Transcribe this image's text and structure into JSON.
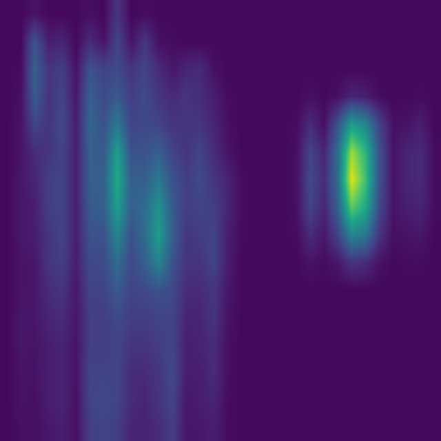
{
  "chart_data": {
    "type": "heatmap",
    "zlim": [
      0,
      1
    ],
    "tick_labels": false,
    "cells": [
      [
        0.02,
        0.02,
        0.05,
        0.02,
        0.02,
        0.02,
        0.04,
        0.02,
        0.15,
        0.02,
        0.03,
        0.02,
        0.02,
        0.02,
        0.02,
        0.02,
        0.02,
        0.02,
        0.02,
        0.02,
        0.02,
        0.02,
        0.02,
        0.02,
        0.02,
        0.02,
        0.02,
        0.02,
        0.02,
        0.02,
        0.02,
        0.02
      ],
      [
        0.02,
        0.02,
        0.25,
        0.08,
        0.1,
        0.02,
        0.12,
        0.05,
        0.2,
        0.05,
        0.15,
        0.04,
        0.03,
        0.02,
        0.02,
        0.02,
        0.02,
        0.02,
        0.02,
        0.02,
        0.02,
        0.02,
        0.02,
        0.02,
        0.02,
        0.02,
        0.02,
        0.02,
        0.02,
        0.02,
        0.02,
        0.02
      ],
      [
        0.02,
        0.03,
        0.3,
        0.15,
        0.18,
        0.05,
        0.25,
        0.2,
        0.22,
        0.15,
        0.2,
        0.12,
        0.06,
        0.1,
        0.12,
        0.04,
        0.02,
        0.02,
        0.02,
        0.02,
        0.02,
        0.02,
        0.02,
        0.02,
        0.02,
        0.02,
        0.02,
        0.02,
        0.02,
        0.02,
        0.02,
        0.02
      ],
      [
        0.02,
        0.04,
        0.28,
        0.15,
        0.2,
        0.06,
        0.3,
        0.22,
        0.28,
        0.18,
        0.22,
        0.15,
        0.12,
        0.15,
        0.12,
        0.08,
        0.03,
        0.02,
        0.02,
        0.02,
        0.02,
        0.02,
        0.04,
        0.02,
        0.04,
        0.1,
        0.08,
        0.03,
        0.02,
        0.02,
        0.03,
        0.02
      ],
      [
        0.02,
        0.05,
        0.2,
        0.15,
        0.22,
        0.08,
        0.32,
        0.25,
        0.4,
        0.2,
        0.22,
        0.2,
        0.15,
        0.15,
        0.15,
        0.1,
        0.04,
        0.02,
        0.02,
        0.02,
        0.02,
        0.03,
        0.12,
        0.04,
        0.25,
        0.55,
        0.45,
        0.2,
        0.04,
        0.05,
        0.08,
        0.02
      ],
      [
        0.02,
        0.05,
        0.12,
        0.15,
        0.2,
        0.08,
        0.3,
        0.28,
        0.55,
        0.25,
        0.25,
        0.3,
        0.2,
        0.15,
        0.2,
        0.12,
        0.05,
        0.02,
        0.02,
        0.02,
        0.02,
        0.04,
        0.2,
        0.1,
        0.35,
        0.85,
        0.65,
        0.25,
        0.05,
        0.1,
        0.12,
        0.03
      ],
      [
        0.02,
        0.06,
        0.1,
        0.18,
        0.2,
        0.08,
        0.3,
        0.3,
        0.6,
        0.3,
        0.3,
        0.4,
        0.25,
        0.18,
        0.22,
        0.15,
        0.1,
        0.03,
        0.02,
        0.02,
        0.02,
        0.04,
        0.22,
        0.12,
        0.35,
        0.95,
        0.7,
        0.25,
        0.05,
        0.1,
        0.12,
        0.03
      ],
      [
        0.02,
        0.06,
        0.08,
        0.18,
        0.2,
        0.08,
        0.28,
        0.3,
        0.55,
        0.3,
        0.35,
        0.5,
        0.28,
        0.18,
        0.2,
        0.18,
        0.1,
        0.03,
        0.02,
        0.02,
        0.02,
        0.04,
        0.2,
        0.1,
        0.3,
        0.75,
        0.6,
        0.22,
        0.05,
        0.08,
        0.1,
        0.03
      ],
      [
        0.02,
        0.06,
        0.08,
        0.15,
        0.2,
        0.08,
        0.25,
        0.25,
        0.45,
        0.25,
        0.35,
        0.55,
        0.3,
        0.15,
        0.18,
        0.2,
        0.08,
        0.03,
        0.02,
        0.02,
        0.02,
        0.03,
        0.12,
        0.06,
        0.2,
        0.45,
        0.4,
        0.15,
        0.04,
        0.05,
        0.06,
        0.02
      ],
      [
        0.02,
        0.05,
        0.06,
        0.15,
        0.18,
        0.08,
        0.22,
        0.22,
        0.35,
        0.22,
        0.3,
        0.45,
        0.25,
        0.15,
        0.15,
        0.2,
        0.08,
        0.02,
        0.02,
        0.02,
        0.02,
        0.02,
        0.05,
        0.03,
        0.06,
        0.15,
        0.12,
        0.05,
        0.02,
        0.03,
        0.03,
        0.02
      ],
      [
        0.02,
        0.05,
        0.06,
        0.12,
        0.15,
        0.06,
        0.2,
        0.2,
        0.28,
        0.2,
        0.22,
        0.25,
        0.22,
        0.12,
        0.12,
        0.15,
        0.06,
        0.02,
        0.02,
        0.02,
        0.02,
        0.02,
        0.02,
        0.02,
        0.02,
        0.02,
        0.02,
        0.02,
        0.02,
        0.02,
        0.02,
        0.02
      ],
      [
        0.02,
        0.06,
        0.06,
        0.1,
        0.12,
        0.06,
        0.18,
        0.18,
        0.22,
        0.18,
        0.18,
        0.2,
        0.2,
        0.1,
        0.1,
        0.15,
        0.05,
        0.02,
        0.02,
        0.02,
        0.02,
        0.02,
        0.02,
        0.02,
        0.02,
        0.02,
        0.02,
        0.02,
        0.02,
        0.02,
        0.02,
        0.02
      ],
      [
        0.02,
        0.06,
        0.05,
        0.08,
        0.1,
        0.05,
        0.18,
        0.18,
        0.2,
        0.15,
        0.15,
        0.18,
        0.2,
        0.08,
        0.1,
        0.12,
        0.04,
        0.02,
        0.02,
        0.02,
        0.02,
        0.02,
        0.02,
        0.02,
        0.02,
        0.02,
        0.02,
        0.02,
        0.02,
        0.02,
        0.02,
        0.02
      ],
      [
        0.02,
        0.05,
        0.05,
        0.08,
        0.1,
        0.05,
        0.2,
        0.2,
        0.2,
        0.12,
        0.12,
        0.15,
        0.22,
        0.08,
        0.08,
        0.12,
        0.04,
        0.02,
        0.02,
        0.02,
        0.02,
        0.02,
        0.02,
        0.02,
        0.02,
        0.02,
        0.02,
        0.02,
        0.02,
        0.02,
        0.02,
        0.02
      ],
      [
        0.02,
        0.05,
        0.04,
        0.08,
        0.1,
        0.04,
        0.2,
        0.22,
        0.2,
        0.12,
        0.1,
        0.15,
        0.2,
        0.06,
        0.08,
        0.1,
        0.03,
        0.02,
        0.02,
        0.02,
        0.02,
        0.02,
        0.02,
        0.02,
        0.02,
        0.02,
        0.02,
        0.02,
        0.02,
        0.02,
        0.02,
        0.02
      ],
      [
        0.02,
        0.04,
        0.04,
        0.06,
        0.08,
        0.04,
        0.18,
        0.2,
        0.18,
        0.1,
        0.1,
        0.12,
        0.18,
        0.06,
        0.06,
        0.08,
        0.03,
        0.02,
        0.02,
        0.02,
        0.02,
        0.02,
        0.02,
        0.02,
        0.02,
        0.02,
        0.02,
        0.02,
        0.02,
        0.02,
        0.02,
        0.02
      ]
    ]
  }
}
